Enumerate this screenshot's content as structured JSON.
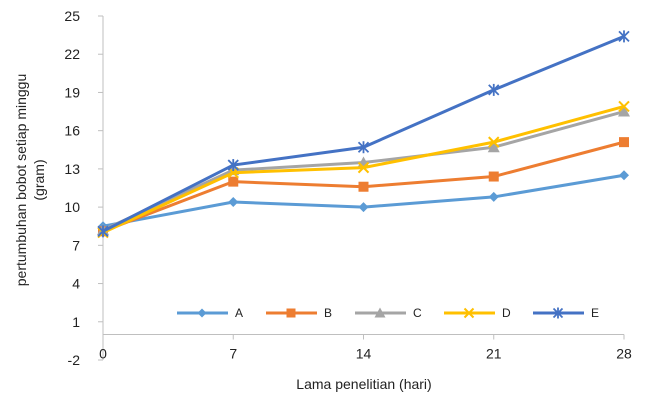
{
  "chart_data": {
    "type": "line",
    "xlabel": "Lama penelitian (hari)",
    "ylabel_lines": [
      "pertumbuhan bobot setiap minggu",
      "(gram)"
    ],
    "x": [
      0,
      7,
      14,
      21,
      28
    ],
    "xlim": [
      0,
      28
    ],
    "ylim": [
      -2,
      25
    ],
    "yticks": [
      -2,
      1,
      4,
      7,
      10,
      13,
      16,
      19,
      22,
      25
    ],
    "xticks": [
      0,
      7,
      14,
      21,
      28
    ],
    "grid": false,
    "legend_position": "bottom-inside",
    "series": [
      {
        "name": "A",
        "color": "#5B9BD5",
        "marker": "diamond",
        "values": [
          8.5,
          10.4,
          10.0,
          10.8,
          12.5
        ]
      },
      {
        "name": "B",
        "color": "#ED7D31",
        "marker": "square",
        "values": [
          8.1,
          12.0,
          11.6,
          12.4,
          15.1
        ]
      },
      {
        "name": "C",
        "color": "#A5A5A5",
        "marker": "triangle",
        "values": [
          8.2,
          12.9,
          13.5,
          14.7,
          17.5
        ]
      },
      {
        "name": "D",
        "color": "#FFC000",
        "marker": "x",
        "values": [
          8.0,
          12.7,
          13.1,
          15.1,
          17.9
        ]
      },
      {
        "name": "E",
        "color": "#4472C4",
        "marker": "star",
        "values": [
          8.1,
          13.3,
          14.7,
          19.2,
          23.4
        ]
      }
    ]
  }
}
